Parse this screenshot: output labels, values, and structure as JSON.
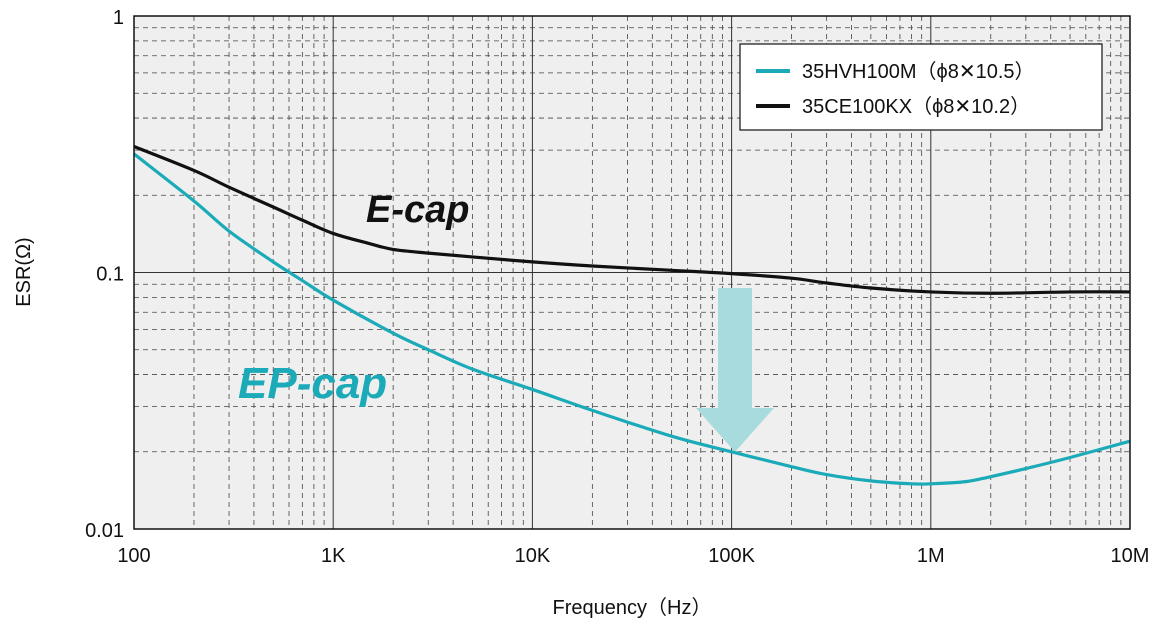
{
  "chart_data": {
    "type": "line",
    "xlabel": "Frequency（Hz）",
    "ylabel": "ESR(Ω)",
    "x_scale": "log",
    "y_scale": "log",
    "xlim": [
      100,
      10000000
    ],
    "ylim": [
      0.01,
      1
    ],
    "x_ticks": [
      {
        "value": 100,
        "label": "100"
      },
      {
        "value": 1000,
        "label": "1K"
      },
      {
        "value": 10000,
        "label": "10K"
      },
      {
        "value": 100000,
        "label": "100K"
      },
      {
        "value": 1000000,
        "label": "1M"
      },
      {
        "value": 10000000,
        "label": "10M"
      }
    ],
    "y_ticks": [
      {
        "value": 0.01,
        "label": "0.01"
      },
      {
        "value": 0.1,
        "label": "0.1"
      },
      {
        "value": 1,
        "label": "1"
      }
    ],
    "grid": true,
    "legend_position": "top-right",
    "series": [
      {
        "name": "35HVH100M（ϕ8✕10.5）",
        "color": "#1aaab8",
        "x": [
          100,
          200,
          300,
          500,
          700,
          1000,
          2000,
          3000,
          5000,
          10000,
          20000,
          50000,
          100000,
          200000,
          300000,
          500000,
          800000,
          1000000,
          1500000,
          2000000,
          3000000,
          5000000,
          10000000
        ],
        "y": [
          0.29,
          0.19,
          0.145,
          0.11,
          0.093,
          0.078,
          0.058,
          0.05,
          0.042,
          0.035,
          0.029,
          0.023,
          0.02,
          0.0175,
          0.0163,
          0.0154,
          0.015,
          0.015,
          0.0153,
          0.016,
          0.0172,
          0.019,
          0.022
        ]
      },
      {
        "name": "35CE100KX（ϕ8✕10.2）",
        "color": "#111111",
        "x": [
          100,
          200,
          300,
          500,
          700,
          1000,
          1500,
          2000,
          3000,
          5000,
          10000,
          20000,
          50000,
          100000,
          200000,
          300000,
          500000,
          1000000,
          2000000,
          5000000,
          10000000
        ],
        "y": [
          0.31,
          0.25,
          0.215,
          0.18,
          0.16,
          0.142,
          0.13,
          0.123,
          0.119,
          0.115,
          0.11,
          0.106,
          0.102,
          0.099,
          0.095,
          0.091,
          0.087,
          0.084,
          0.083,
          0.084,
          0.084
        ]
      }
    ],
    "annotations": [
      {
        "text": "E-cap",
        "color": "#111111"
      },
      {
        "text": "EP-cap",
        "color": "#1aaab8"
      }
    ],
    "arrow_color": "#a8dbde"
  }
}
